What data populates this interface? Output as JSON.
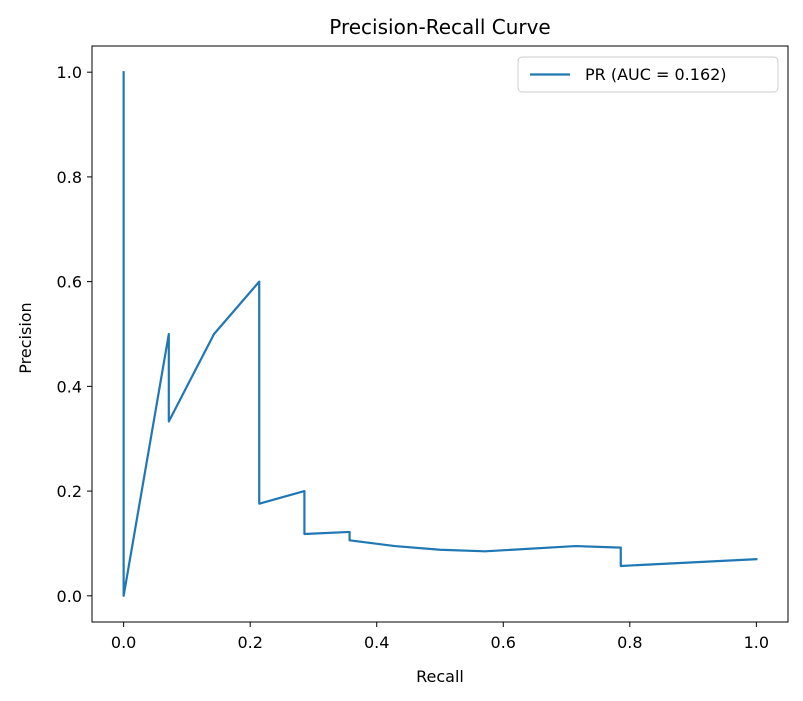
{
  "chart_data": {
    "type": "line",
    "title": "Precision-Recall Curve",
    "xlabel": "Recall",
    "ylabel": "Precision",
    "xlim": [
      -0.05,
      1.05
    ],
    "ylim": [
      -0.05,
      1.05
    ],
    "xticks": [
      0.0,
      0.2,
      0.4,
      0.6,
      0.8,
      1.0
    ],
    "yticks": [
      0.0,
      0.2,
      0.4,
      0.6,
      0.8,
      1.0
    ],
    "xtick_labels": [
      "0.0",
      "0.2",
      "0.4",
      "0.6",
      "0.8",
      "1.0"
    ],
    "ytick_labels": [
      "0.0",
      "0.2",
      "0.4",
      "0.6",
      "0.8",
      "1.0"
    ],
    "grid": false,
    "legend_position": "top-right",
    "series": [
      {
        "name": "PR (AUC = 0.162)",
        "color": "#1f77b4",
        "x": [
          0.0,
          0.0,
          0.0714,
          0.0714,
          0.1429,
          0.2143,
          0.2143,
          0.2857,
          0.2857,
          0.3571,
          0.3571,
          0.4286,
          0.5,
          0.5714,
          0.7143,
          0.7857,
          0.7857,
          1.0
        ],
        "y": [
          1.0,
          0.0,
          0.5,
          0.333,
          0.5,
          0.6,
          0.176,
          0.2,
          0.118,
          0.122,
          0.106,
          0.095,
          0.088,
          0.085,
          0.095,
          0.092,
          0.057,
          0.07
        ]
      }
    ]
  }
}
